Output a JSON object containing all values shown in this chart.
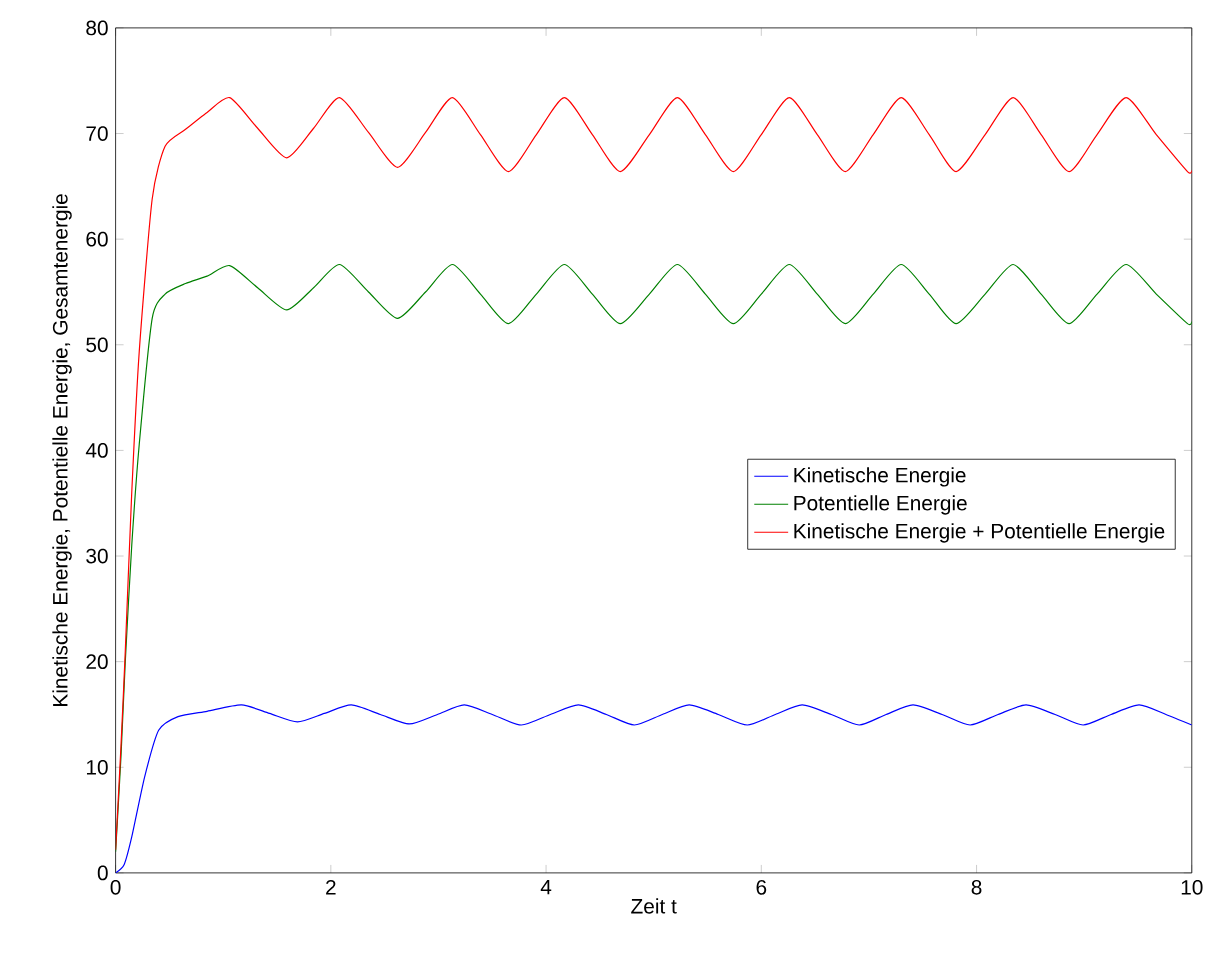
{
  "chart_data": {
    "type": "line",
    "xlabel": "Zeit t",
    "ylabel": "Kinetische Energie, Potentielle Energie, Gesamtenergie",
    "xlim": [
      0,
      10
    ],
    "ylim": [
      0,
      80
    ],
    "xticks": [
      0,
      2,
      4,
      6,
      8,
      10
    ],
    "yticks": [
      0,
      10,
      20,
      30,
      40,
      50,
      60,
      70,
      80
    ],
    "legend": "right",
    "series": [
      {
        "name": "Kinetische Energie",
        "color": "#0000ff",
        "x": [
          0,
          0.08,
          0.15,
          0.27,
          0.4,
          0.58,
          0.85,
          1.17,
          1.43,
          1.69,
          1.94,
          2.19,
          2.46,
          2.73,
          2.99,
          3.24,
          3.5,
          3.77,
          4.04,
          4.3,
          4.56,
          4.82,
          5.08,
          5.33,
          5.6,
          5.87,
          6.13,
          6.38,
          6.65,
          6.91,
          7.16,
          7.41,
          7.68,
          7.94,
          8.2,
          8.46,
          8.73,
          8.99,
          9.25,
          9.51,
          9.76,
          10
        ],
        "values": [
          0,
          0.8,
          3.4,
          9.1,
          13.5,
          14.8,
          15.3,
          15.9,
          15.1,
          14.3,
          15.1,
          15.9,
          15.0,
          14.1,
          15.0,
          15.9,
          15.0,
          14.0,
          15.0,
          15.9,
          15.0,
          14.0,
          15.0,
          15.9,
          15.0,
          14.0,
          15.0,
          15.9,
          15.0,
          14.0,
          15.0,
          15.9,
          15.0,
          14.0,
          15.0,
          15.9,
          15.0,
          14.0,
          15.0,
          15.9,
          15.0,
          14.0
        ]
      },
      {
        "name": "Potentielle Energie",
        "color": "#008000",
        "x": [
          0,
          0.05,
          0.09,
          0.15,
          0.22,
          0.34,
          0.46,
          0.65,
          0.85,
          1.06,
          1.32,
          1.59,
          1.84,
          2.08,
          2.35,
          2.62,
          2.88,
          3.13,
          3.39,
          3.65,
          3.91,
          4.17,
          4.43,
          4.69,
          4.96,
          5.22,
          5.48,
          5.74,
          6.0,
          6.26,
          6.52,
          6.78,
          7.04,
          7.3,
          7.56,
          7.81,
          8.08,
          8.34,
          8.6,
          8.86,
          9.12,
          9.39,
          9.67,
          9.96,
          10
        ],
        "values": [
          2,
          11,
          20,
          31,
          40.6,
          52.5,
          54.8,
          55.8,
          56.5,
          57.5,
          55.4,
          53.3,
          55.4,
          57.6,
          55.0,
          52.5,
          55.0,
          57.6,
          54.8,
          52.0,
          54.8,
          57.6,
          54.8,
          52.0,
          54.8,
          57.6,
          54.8,
          52.0,
          54.8,
          57.6,
          54.8,
          52.0,
          54.8,
          57.6,
          54.8,
          52.0,
          54.8,
          57.6,
          54.8,
          52.0,
          54.8,
          57.6,
          54.8,
          52.0,
          52.2
        ]
      },
      {
        "name": "Kinetische Energie + Potentielle Energie",
        "color": "#ff0000",
        "x": [
          0,
          0.05,
          0.09,
          0.15,
          0.22,
          0.34,
          0.46,
          0.65,
          0.85,
          1.06,
          1.32,
          1.59,
          1.84,
          2.08,
          2.35,
          2.62,
          2.88,
          3.13,
          3.39,
          3.65,
          3.91,
          4.17,
          4.43,
          4.69,
          4.96,
          5.22,
          5.48,
          5.74,
          6.0,
          6.26,
          6.52,
          6.78,
          7.04,
          7.3,
          7.56,
          7.81,
          8.08,
          8.34,
          8.6,
          8.86,
          9.12,
          9.39,
          9.67,
          9.96,
          10
        ],
        "values": [
          2.2,
          12,
          21,
          36,
          49.4,
          63.8,
          68.8,
          70.4,
          72,
          73.4,
          70.5,
          67.7,
          70.5,
          73.4,
          70.1,
          66.8,
          70.1,
          73.4,
          69.9,
          66.4,
          69.9,
          73.4,
          69.9,
          66.4,
          69.9,
          73.4,
          69.9,
          66.4,
          69.9,
          73.4,
          69.9,
          66.4,
          69.9,
          73.4,
          69.9,
          66.4,
          69.9,
          73.4,
          69.9,
          66.4,
          69.9,
          73.4,
          69.9,
          66.4,
          66.5
        ]
      }
    ]
  }
}
